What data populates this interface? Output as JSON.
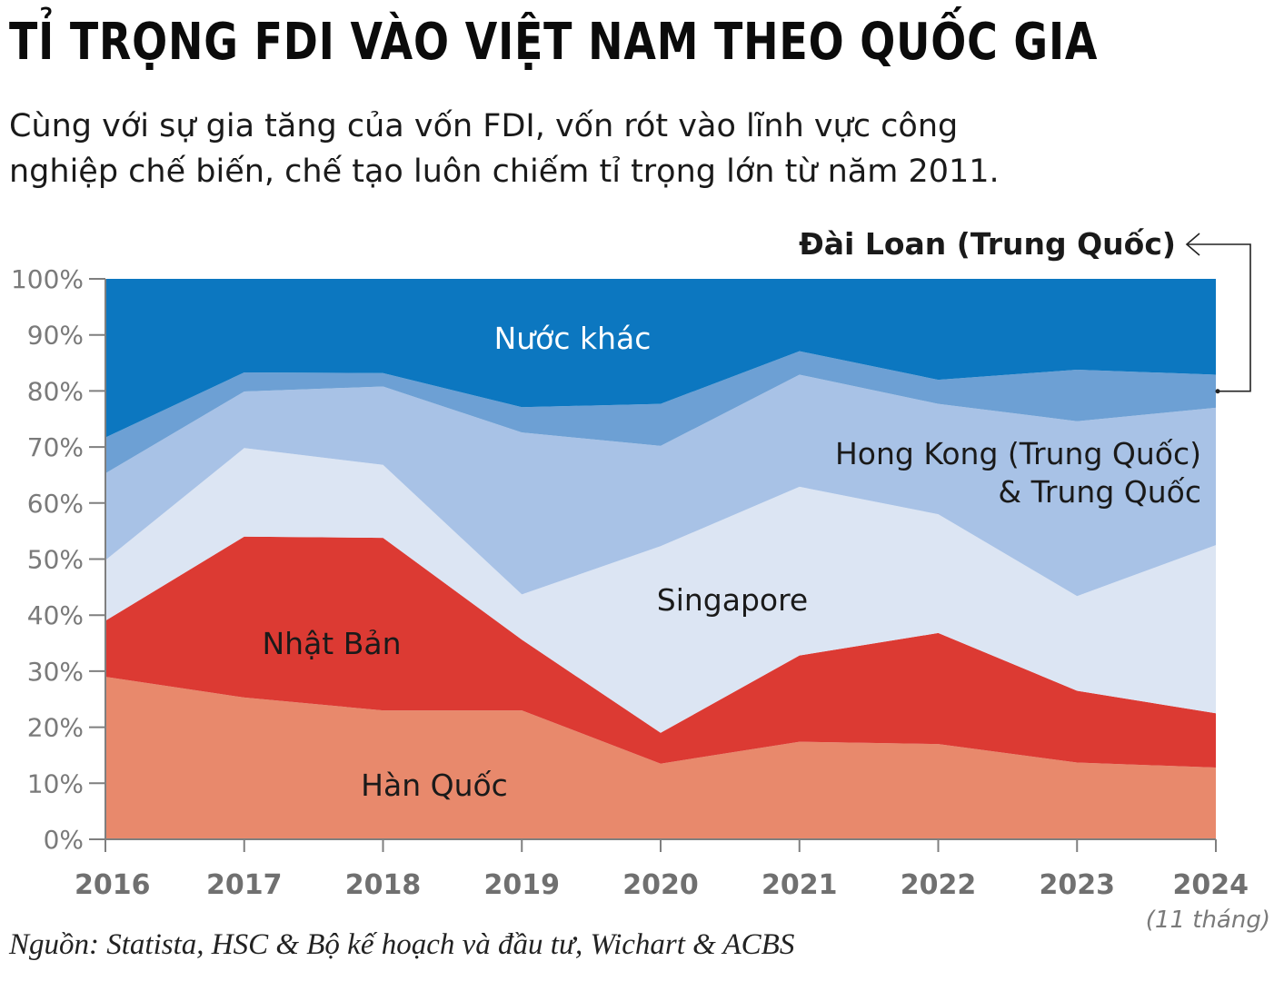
{
  "title": "TỈ TRỌNG FDI VÀO VIỆT NAM THEO QUỐC GIA",
  "subtitle_lines": [
    "Cùng với sự gia tăng của vốn FDI, vốn rót vào lĩnh vực công",
    "nghiệp chế biến, chế tạo luôn chiếm tỉ trọng lớn từ năm 2011."
  ],
  "source": "Nguồn: Statista, HSC & Bộ kế hoạch và đầu tư, Wichart & ACBS",
  "chart_data": {
    "type": "area",
    "stacked": true,
    "x": [
      "2016",
      "2017",
      "2018",
      "2019",
      "2020",
      "2021",
      "2022",
      "2023",
      "2024"
    ],
    "x_notes": {
      "2024": "(11 tháng)"
    },
    "ylim": [
      0,
      100
    ],
    "yticks": [
      "0%",
      "10%",
      "20%",
      "30%",
      "40%",
      "50%",
      "60%",
      "70%",
      "80%",
      "90%",
      "100%"
    ],
    "grid": false,
    "series": [
      {
        "name": "Hàn Quốc",
        "color": "#e8896c",
        "values": [
          29,
          25.3,
          23.0,
          23.0,
          13.5,
          17.4,
          17.0,
          13.7,
          12.8
        ]
      },
      {
        "name": "Nhật Bản",
        "color": "#dc3a33",
        "values": [
          10,
          28.7,
          30.8,
          12.6,
          5.5,
          15.4,
          19.8,
          12.8,
          9.7
        ]
      },
      {
        "name": "Singapore",
        "color": "#dce5f3",
        "values": [
          10.8,
          15.8,
          13.0,
          8.1,
          33.3,
          30.1,
          21.2,
          16.9,
          30.0
        ]
      },
      {
        "name": "Hong Kong (Trung Quốc)\n& Trung Quốc",
        "color": "#a8c2e6",
        "values": [
          15.5,
          10.1,
          14.0,
          28.9,
          17.9,
          20.0,
          19.7,
          31.2,
          24.5
        ]
      },
      {
        "name": "Đài Loan (Trung Quốc)",
        "color": "#6da0d4",
        "values": [
          6.4,
          3.4,
          2.4,
          4.5,
          7.5,
          4.2,
          4.3,
          9.2,
          5.9
        ]
      },
      {
        "name": "Nước khác",
        "color": "#0c77c0",
        "values": [
          28.3,
          16.7,
          16.8,
          22.9,
          22.3,
          12.9,
          18.0,
          16.2,
          17.1
        ]
      }
    ]
  }
}
